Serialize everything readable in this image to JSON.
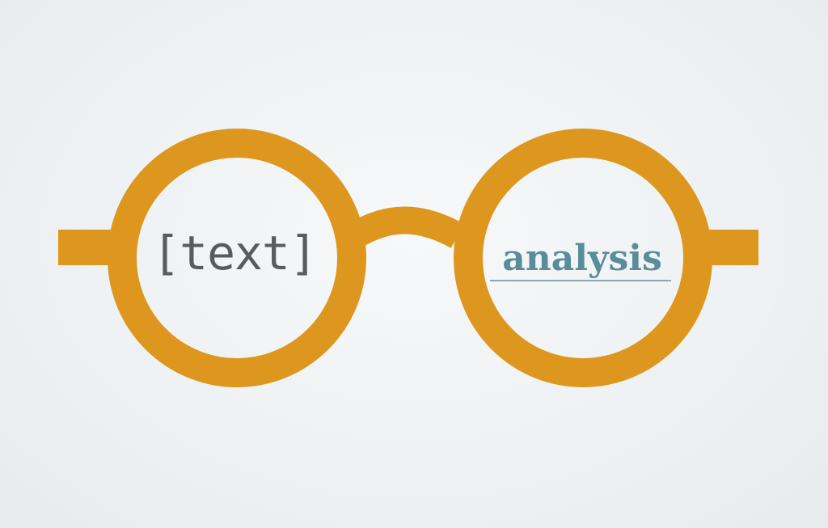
{
  "logo": {
    "left_lens_text": "[text]",
    "right_lens_text": "analysis"
  },
  "colors": {
    "frame": "#dd971f",
    "left_text": "#5b5b5b",
    "right_text": "#5a8c99",
    "underline": "#8aa6ae",
    "background": "#eef1f3"
  },
  "icons": {
    "main": "eyeglasses-icon"
  }
}
